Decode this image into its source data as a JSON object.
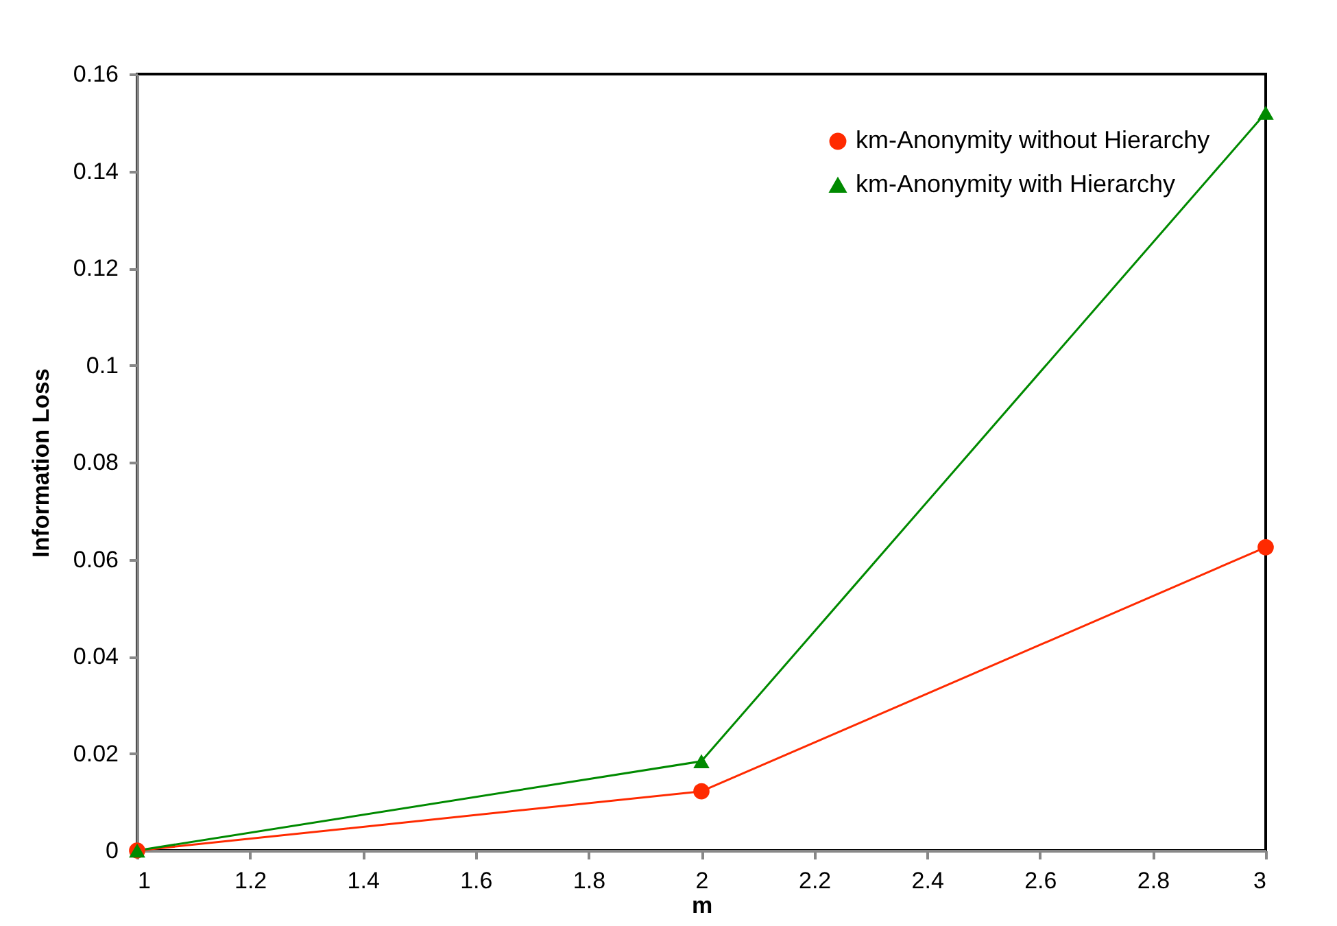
{
  "chart_data": {
    "type": "line",
    "xlabel": "m",
    "ylabel": "Information Loss",
    "x": [
      1,
      2,
      3
    ],
    "series": [
      {
        "name": "km-Anonymity without Hierarchy",
        "color": "#ff2a00",
        "marker": "circle",
        "values": [
          0,
          0.0122,
          0.0625
        ]
      },
      {
        "name": "km-Anonymity with Hierarchy",
        "color": "#008a00",
        "marker": "triangle",
        "values": [
          0,
          0.0184,
          0.152
        ]
      }
    ],
    "xlim": [
      1,
      3
    ],
    "xticks": [
      1,
      1.2,
      1.4,
      1.6,
      1.8,
      2,
      2.2,
      2.4,
      2.6,
      2.8,
      3
    ],
    "ylim": [
      0,
      0.16
    ],
    "yticks": [
      0,
      0.02,
      0.04,
      0.06,
      0.08,
      0.1,
      0.12,
      0.14,
      0.16
    ],
    "grid": false,
    "legend": "top right"
  }
}
